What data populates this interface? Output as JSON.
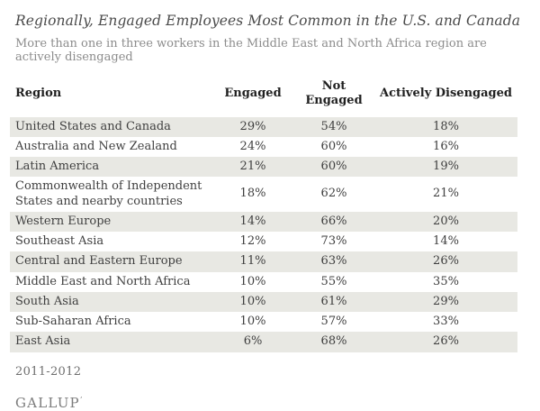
{
  "header": {
    "title": "Regionally, Engaged Employees Most Common in the U.S. and Canada",
    "subtitle": "More than one in three workers in the Middle East and North Africa region are actively disengaged"
  },
  "chart_data": {
    "type": "table",
    "title": "Regionally, Engaged Employees Most Common in the U.S. and Canada",
    "subtitle": "More than one in three workers in the Middle East and North Africa region are actively disengaged",
    "columns": [
      "Region",
      "Engaged",
      "Not Engaged",
      "Actively Disengaged"
    ],
    "rows": [
      {
        "region": "United States and Canada",
        "engaged": "29%",
        "not_engaged": "54%",
        "actively_disengaged": "18%"
      },
      {
        "region": "Australia and New Zealand",
        "engaged": "24%",
        "not_engaged": "60%",
        "actively_disengaged": "16%"
      },
      {
        "region": "Latin America",
        "engaged": "21%",
        "not_engaged": "60%",
        "actively_disengaged": "19%"
      },
      {
        "region": "Commonwealth of Independent States and nearby countries",
        "engaged": "18%",
        "not_engaged": "62%",
        "actively_disengaged": "21%"
      },
      {
        "region": "Western Europe",
        "engaged": "14%",
        "not_engaged": "66%",
        "actively_disengaged": "20%"
      },
      {
        "region": "Southeast Asia",
        "engaged": "12%",
        "not_engaged": "73%",
        "actively_disengaged": "14%"
      },
      {
        "region": "Central and Eastern Europe",
        "engaged": "11%",
        "not_engaged": "63%",
        "actively_disengaged": "26%"
      },
      {
        "region": "Middle East and North Africa",
        "engaged": "10%",
        "not_engaged": "55%",
        "actively_disengaged": "35%"
      },
      {
        "region": "South Asia",
        "engaged": "10%",
        "not_engaged": "61%",
        "actively_disengaged": "29%"
      },
      {
        "region": "Sub-Saharan Africa",
        "engaged": "10%",
        "not_engaged": "57%",
        "actively_disengaged": "33%"
      },
      {
        "region": "East Asia",
        "engaged": "6%",
        "not_engaged": "68%",
        "actively_disengaged": "26%"
      }
    ]
  },
  "footer": {
    "period": "2011-2012",
    "brand": "GALLUP",
    "brand_mark": "’"
  }
}
